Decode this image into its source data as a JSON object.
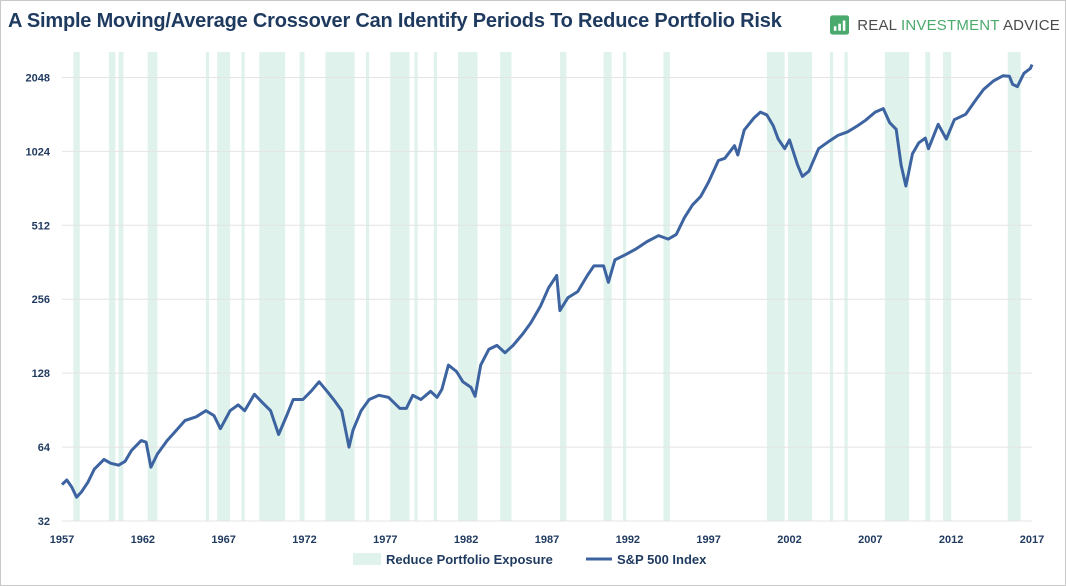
{
  "header": {
    "title": "A Simple Moving/Average Crossover Can Identify Periods To Reduce Portfolio Risk",
    "brand_part1": "REAL ",
    "brand_part2": "INVESTMENT",
    "brand_part3": " ADVICE",
    "logo_icon": "rising-chart-icon"
  },
  "colors": {
    "line": "#3d64a0",
    "shade": "#dff2ec",
    "grid": "#e4e4e4",
    "text": "#1f3a5f",
    "brand_green": "#4aa96c"
  },
  "chart_data": {
    "type": "line",
    "yscale": "log2",
    "ylim": [
      32,
      2600
    ],
    "xlim": [
      1957,
      2017
    ],
    "yticks": [
      32,
      64,
      128,
      256,
      512,
      1024,
      2048
    ],
    "xticks": [
      1957,
      1962,
      1967,
      1972,
      1977,
      1982,
      1987,
      1992,
      1997,
      2002,
      2007,
      2012,
      2017
    ],
    "grid": "horizontal",
    "legend_position": "bottom",
    "legend": [
      {
        "label": "Reduce Portfolio Exposure",
        "type": "area"
      },
      {
        "label": "S&P 500 Index",
        "type": "line"
      }
    ],
    "series": [
      {
        "name": "S&P 500 Index",
        "points": [
          [
            1957.0,
            45
          ],
          [
            1957.3,
            47
          ],
          [
            1957.6,
            44
          ],
          [
            1957.9,
            40
          ],
          [
            1958.2,
            42
          ],
          [
            1958.6,
            46
          ],
          [
            1959.0,
            52
          ],
          [
            1959.6,
            57
          ],
          [
            1960.0,
            55
          ],
          [
            1960.5,
            54
          ],
          [
            1960.9,
            56
          ],
          [
            1961.3,
            62
          ],
          [
            1961.9,
            68
          ],
          [
            1962.2,
            67
          ],
          [
            1962.5,
            53
          ],
          [
            1962.9,
            60
          ],
          [
            1963.5,
            68
          ],
          [
            1964.0,
            74
          ],
          [
            1964.6,
            82
          ],
          [
            1965.3,
            85
          ],
          [
            1965.9,
            90
          ],
          [
            1966.4,
            86
          ],
          [
            1966.8,
            76
          ],
          [
            1967.4,
            90
          ],
          [
            1967.9,
            95
          ],
          [
            1968.3,
            90
          ],
          [
            1968.9,
            105
          ],
          [
            1969.4,
            97
          ],
          [
            1969.9,
            90
          ],
          [
            1970.4,
            72
          ],
          [
            1970.9,
            86
          ],
          [
            1971.3,
            100
          ],
          [
            1971.9,
            100
          ],
          [
            1972.4,
            108
          ],
          [
            1972.9,
            118
          ],
          [
            1973.4,
            108
          ],
          [
            1973.9,
            98
          ],
          [
            1974.3,
            90
          ],
          [
            1974.6,
            72
          ],
          [
            1974.75,
            64
          ],
          [
            1975.0,
            75
          ],
          [
            1975.5,
            90
          ],
          [
            1976.0,
            100
          ],
          [
            1976.6,
            104
          ],
          [
            1977.2,
            102
          ],
          [
            1977.9,
            92
          ],
          [
            1978.3,
            92
          ],
          [
            1978.7,
            104
          ],
          [
            1979.2,
            100
          ],
          [
            1979.8,
            108
          ],
          [
            1980.2,
            102
          ],
          [
            1980.5,
            110
          ],
          [
            1980.9,
            138
          ],
          [
            1981.4,
            130
          ],
          [
            1981.8,
            118
          ],
          [
            1982.3,
            112
          ],
          [
            1982.55,
            103
          ],
          [
            1982.9,
            138
          ],
          [
            1983.4,
            160
          ],
          [
            1983.9,
            166
          ],
          [
            1984.4,
            155
          ],
          [
            1984.9,
            166
          ],
          [
            1985.5,
            185
          ],
          [
            1986.0,
            205
          ],
          [
            1986.6,
            240
          ],
          [
            1987.1,
            285
          ],
          [
            1987.6,
            320
          ],
          [
            1987.8,
            230
          ],
          [
            1988.3,
            260
          ],
          [
            1988.9,
            275
          ],
          [
            1989.5,
            320
          ],
          [
            1989.9,
            350
          ],
          [
            1990.5,
            350
          ],
          [
            1990.8,
            300
          ],
          [
            1991.2,
            370
          ],
          [
            1991.9,
            390
          ],
          [
            1992.5,
            410
          ],
          [
            1993.2,
            440
          ],
          [
            1993.9,
            465
          ],
          [
            1994.5,
            450
          ],
          [
            1995.0,
            470
          ],
          [
            1995.5,
            550
          ],
          [
            1996.0,
            620
          ],
          [
            1996.5,
            670
          ],
          [
            1997.0,
            770
          ],
          [
            1997.6,
            940
          ],
          [
            1998.0,
            960
          ],
          [
            1998.6,
            1080
          ],
          [
            1998.8,
            990
          ],
          [
            1999.2,
            1250
          ],
          [
            1999.8,
            1400
          ],
          [
            2000.2,
            1480
          ],
          [
            2000.6,
            1440
          ],
          [
            2001.0,
            1300
          ],
          [
            2001.3,
            1150
          ],
          [
            2001.7,
            1050
          ],
          [
            2002.0,
            1140
          ],
          [
            2002.5,
            900
          ],
          [
            2002.8,
            810
          ],
          [
            2003.2,
            850
          ],
          [
            2003.8,
            1050
          ],
          [
            2004.4,
            1120
          ],
          [
            2005.0,
            1190
          ],
          [
            2005.6,
            1230
          ],
          [
            2006.2,
            1300
          ],
          [
            2006.7,
            1370
          ],
          [
            2007.3,
            1480
          ],
          [
            2007.8,
            1530
          ],
          [
            2008.2,
            1340
          ],
          [
            2008.6,
            1260
          ],
          [
            2008.9,
            900
          ],
          [
            2009.2,
            740
          ],
          [
            2009.6,
            1000
          ],
          [
            2010.0,
            1110
          ],
          [
            2010.4,
            1160
          ],
          [
            2010.6,
            1050
          ],
          [
            2011.2,
            1320
          ],
          [
            2011.7,
            1150
          ],
          [
            2012.2,
            1380
          ],
          [
            2012.9,
            1450
          ],
          [
            2013.5,
            1650
          ],
          [
            2014.0,
            1830
          ],
          [
            2014.6,
            1980
          ],
          [
            2015.2,
            2080
          ],
          [
            2015.6,
            2070
          ],
          [
            2015.8,
            1920
          ],
          [
            2016.1,
            1880
          ],
          [
            2016.5,
            2130
          ],
          [
            2016.9,
            2230
          ],
          [
            2017.0,
            2310
          ]
        ]
      }
    ],
    "shaded_periods": [
      [
        1957.7,
        1958.1
      ],
      [
        1959.9,
        1960.3
      ],
      [
        1960.5,
        1960.8
      ],
      [
        1962.3,
        1962.9
      ],
      [
        1965.9,
        1966.1
      ],
      [
        1966.6,
        1967.4
      ],
      [
        1968.1,
        1968.3
      ],
      [
        1969.2,
        1970.8
      ],
      [
        1971.7,
        1972.0
      ],
      [
        1973.3,
        1975.1
      ],
      [
        1975.8,
        1976.0
      ],
      [
        1977.3,
        1978.5
      ],
      [
        1978.8,
        1979.0
      ],
      [
        1980.0,
        1980.2
      ],
      [
        1981.5,
        1982.7
      ],
      [
        1984.1,
        1984.8
      ],
      [
        1987.8,
        1988.2
      ],
      [
        1990.5,
        1991.0
      ],
      [
        1991.7,
        1991.9
      ],
      [
        1994.2,
        1994.6
      ],
      [
        2000.6,
        2001.7
      ],
      [
        2001.9,
        2003.4
      ],
      [
        2004.5,
        2004.7
      ],
      [
        2005.4,
        2005.6
      ],
      [
        2007.9,
        2009.4
      ],
      [
        2010.4,
        2010.7
      ],
      [
        2011.5,
        2012.0
      ],
      [
        2015.5,
        2016.3
      ]
    ]
  }
}
